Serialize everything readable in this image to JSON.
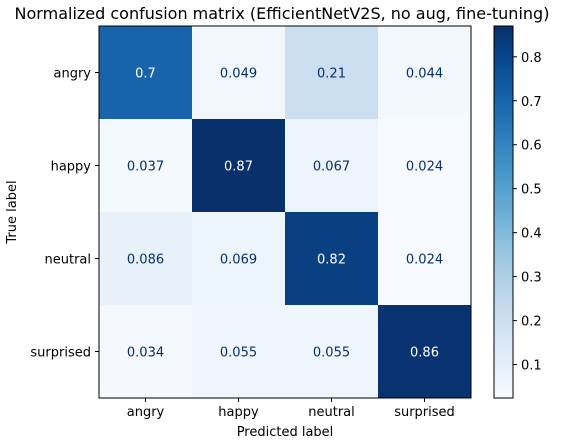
{
  "chart_data": {
    "type": "heatmap",
    "title": "Normalized confusion matrix (EfficientNetV2S, no aug, fine-tuning)",
    "xlabel": "Predicted label",
    "ylabel": "True label",
    "x_categories": [
      "angry",
      "happy",
      "neutral",
      "surprised"
    ],
    "y_categories": [
      "angry",
      "happy",
      "neutral",
      "surprised"
    ],
    "values": [
      [
        0.7,
        0.049,
        0.21,
        0.044
      ],
      [
        0.037,
        0.87,
        0.067,
        0.024
      ],
      [
        0.086,
        0.069,
        0.82,
        0.024
      ],
      [
        0.034,
        0.055,
        0.055,
        0.86
      ]
    ],
    "cell_labels": [
      [
        "0.7",
        "0.049",
        "0.21",
        "0.044"
      ],
      [
        "0.037",
        "0.87",
        "0.067",
        "0.024"
      ],
      [
        "0.086",
        "0.069",
        "0.82",
        "0.024"
      ],
      [
        "0.034",
        "0.055",
        "0.055",
        "0.86"
      ]
    ],
    "colormap": "Blues",
    "color_range": [
      0.024,
      0.87
    ],
    "colorbar_ticks": [
      {
        "value": 0.1,
        "label": "0.1"
      },
      {
        "value": 0.2,
        "label": "0.2"
      },
      {
        "value": 0.3,
        "label": "0.3"
      },
      {
        "value": 0.4,
        "label": "0.4"
      },
      {
        "value": 0.5,
        "label": "0.5"
      },
      {
        "value": 0.6,
        "label": "0.6"
      },
      {
        "value": 0.7,
        "label": "0.7"
      },
      {
        "value": 0.8,
        "label": "0.8"
      }
    ],
    "grid": false,
    "legend": "colorbar-right"
  }
}
